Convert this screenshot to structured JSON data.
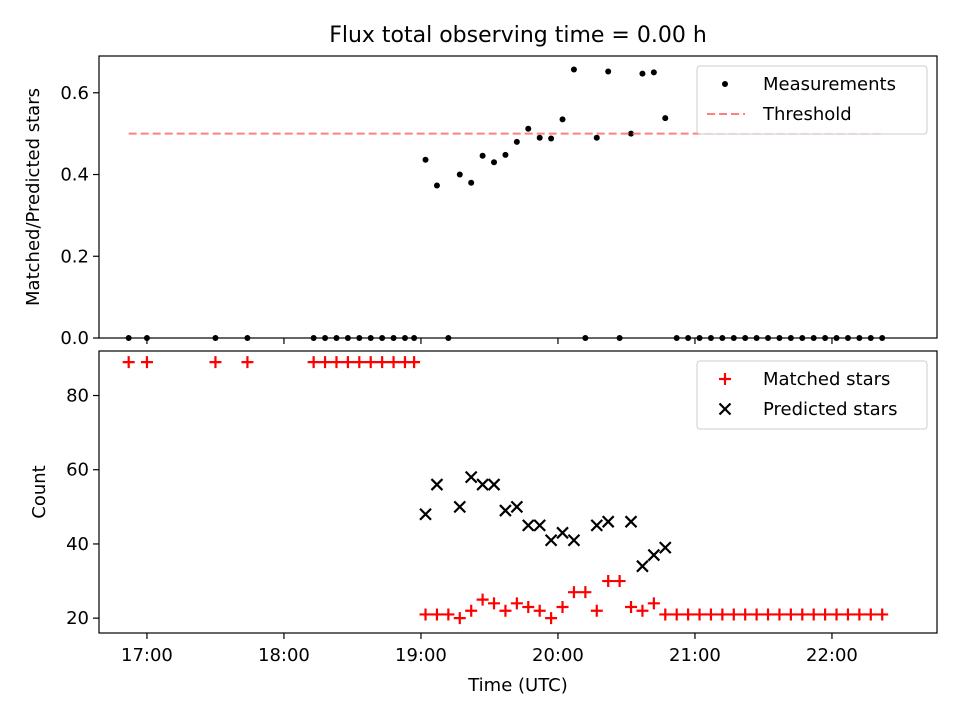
{
  "chart_data": [
    {
      "type": "scatter",
      "title": "Flux total observing time = 0.00 h",
      "xlabel": "",
      "ylabel": "Matched/Predicted stars",
      "xlim": [
        "16:39",
        "22:46"
      ],
      "ylim": [
        0,
        0.69
      ],
      "yticks": [
        "0.0",
        "0.2",
        "0.4",
        "0.6"
      ],
      "grid": false,
      "legend_position": "top-right",
      "series": [
        {
          "name": "Measurements",
          "marker": "dot",
          "color": "#000000",
          "points": [
            [
              "16:52",
              0.0
            ],
            [
              "17:00",
              0.0
            ],
            [
              "17:30",
              0.0
            ],
            [
              "17:44",
              0.0
            ],
            [
              "18:13",
              0.0
            ],
            [
              "18:18",
              0.0
            ],
            [
              "18:23",
              0.0
            ],
            [
              "18:28",
              0.0
            ],
            [
              "18:33",
              0.0
            ],
            [
              "18:38",
              0.0
            ],
            [
              "18:43",
              0.0
            ],
            [
              "18:48",
              0.0
            ],
            [
              "18:53",
              0.0
            ],
            [
              "18:57",
              0.0
            ],
            [
              "19:02",
              0.436
            ],
            [
              "19:07",
              0.373
            ],
            [
              "19:12",
              0.0
            ],
            [
              "19:17",
              0.4
            ],
            [
              "19:22",
              0.38
            ],
            [
              "19:27",
              0.446
            ],
            [
              "19:32",
              0.43
            ],
            [
              "19:37",
              0.448
            ],
            [
              "19:42",
              0.48
            ],
            [
              "19:47",
              0.512
            ],
            [
              "19:52",
              0.49
            ],
            [
              "19:57",
              0.488
            ],
            [
              "20:02",
              0.535
            ],
            [
              "20:07",
              0.657
            ],
            [
              "20:12",
              0.0
            ],
            [
              "20:17",
              0.49
            ],
            [
              "20:22",
              0.652
            ],
            [
              "20:27",
              0.0
            ],
            [
              "20:32",
              0.5
            ],
            [
              "20:37",
              0.647
            ],
            [
              "20:42",
              0.65
            ],
            [
              "20:47",
              0.538
            ],
            [
              "20:52",
              0.0
            ],
            [
              "20:57",
              0.0
            ],
            [
              "21:02",
              0.0
            ],
            [
              "21:07",
              0.0
            ],
            [
              "21:12",
              0.0
            ],
            [
              "21:17",
              0.0
            ],
            [
              "21:22",
              0.0
            ],
            [
              "21:27",
              0.0
            ],
            [
              "21:32",
              0.0
            ],
            [
              "21:37",
              0.0
            ],
            [
              "21:42",
              0.0
            ],
            [
              "21:47",
              0.0
            ],
            [
              "21:52",
              0.0
            ],
            [
              "21:57",
              0.0
            ],
            [
              "22:02",
              0.0
            ],
            [
              "22:07",
              0.0
            ],
            [
              "22:12",
              0.0
            ],
            [
              "22:17",
              0.0
            ],
            [
              "22:22",
              0.0
            ]
          ]
        },
        {
          "name": "Threshold",
          "marker": "dashed-line",
          "color": "#ff7f7f",
          "points": [
            [
              "16:52",
              0.5
            ],
            [
              "22:22",
              0.5
            ]
          ]
        }
      ]
    },
    {
      "type": "scatter",
      "title": "",
      "xlabel": "Time (UTC)",
      "ylabel": "Count",
      "xlim": [
        "16:39",
        "22:46"
      ],
      "ylim": [
        16,
        92
      ],
      "xticks": [
        "17:00",
        "18:00",
        "19:00",
        "20:00",
        "21:00",
        "22:00"
      ],
      "yticks": [
        "20",
        "40",
        "60",
        "80"
      ],
      "grid": false,
      "legend_position": "top-right",
      "series": [
        {
          "name": "Matched stars",
          "marker": "plus",
          "color": "#ff0000",
          "points": [
            [
              "16:52",
              89
            ],
            [
              "17:00",
              89
            ],
            [
              "17:30",
              89
            ],
            [
              "17:44",
              89
            ],
            [
              "18:13",
              89
            ],
            [
              "18:18",
              89
            ],
            [
              "18:23",
              89
            ],
            [
              "18:28",
              89
            ],
            [
              "18:33",
              89
            ],
            [
              "18:38",
              89
            ],
            [
              "18:43",
              89
            ],
            [
              "18:48",
              89
            ],
            [
              "18:53",
              89
            ],
            [
              "18:57",
              89
            ],
            [
              "19:02",
              21
            ],
            [
              "19:07",
              21
            ],
            [
              "19:12",
              21
            ],
            [
              "19:17",
              20
            ],
            [
              "19:22",
              22
            ],
            [
              "19:27",
              25
            ],
            [
              "19:32",
              24
            ],
            [
              "19:37",
              22
            ],
            [
              "19:42",
              24
            ],
            [
              "19:47",
              23
            ],
            [
              "19:52",
              22
            ],
            [
              "19:57",
              20
            ],
            [
              "20:02",
              23
            ],
            [
              "20:07",
              27
            ],
            [
              "20:12",
              27
            ],
            [
              "20:17",
              22
            ],
            [
              "20:22",
              30
            ],
            [
              "20:27",
              30
            ],
            [
              "20:32",
              23
            ],
            [
              "20:37",
              22
            ],
            [
              "20:42",
              24
            ],
            [
              "20:47",
              21
            ],
            [
              "20:52",
              21
            ],
            [
              "20:57",
              21
            ],
            [
              "21:02",
              21
            ],
            [
              "21:07",
              21
            ],
            [
              "21:12",
              21
            ],
            [
              "21:17",
              21
            ],
            [
              "21:22",
              21
            ],
            [
              "21:27",
              21
            ],
            [
              "21:32",
              21
            ],
            [
              "21:37",
              21
            ],
            [
              "21:42",
              21
            ],
            [
              "21:47",
              21
            ],
            [
              "21:52",
              21
            ],
            [
              "21:57",
              21
            ],
            [
              "22:02",
              21
            ],
            [
              "22:07",
              21
            ],
            [
              "22:12",
              21
            ],
            [
              "22:17",
              21
            ],
            [
              "22:22",
              21
            ]
          ]
        },
        {
          "name": "Predicted stars",
          "marker": "x",
          "color": "#000000",
          "points": [
            [
              "19:02",
              48
            ],
            [
              "19:07",
              56
            ],
            [
              "19:17",
              50
            ],
            [
              "19:22",
              58
            ],
            [
              "19:27",
              56
            ],
            [
              "19:32",
              56
            ],
            [
              "19:37",
              49
            ],
            [
              "19:42",
              50
            ],
            [
              "19:47",
              45
            ],
            [
              "19:52",
              45
            ],
            [
              "19:57",
              41
            ],
            [
              "20:02",
              43
            ],
            [
              "20:07",
              41
            ],
            [
              "20:17",
              45
            ],
            [
              "20:22",
              46
            ],
            [
              "20:32",
              46
            ],
            [
              "20:37",
              34
            ],
            [
              "20:42",
              37
            ],
            [
              "20:47",
              39
            ]
          ]
        }
      ]
    }
  ]
}
